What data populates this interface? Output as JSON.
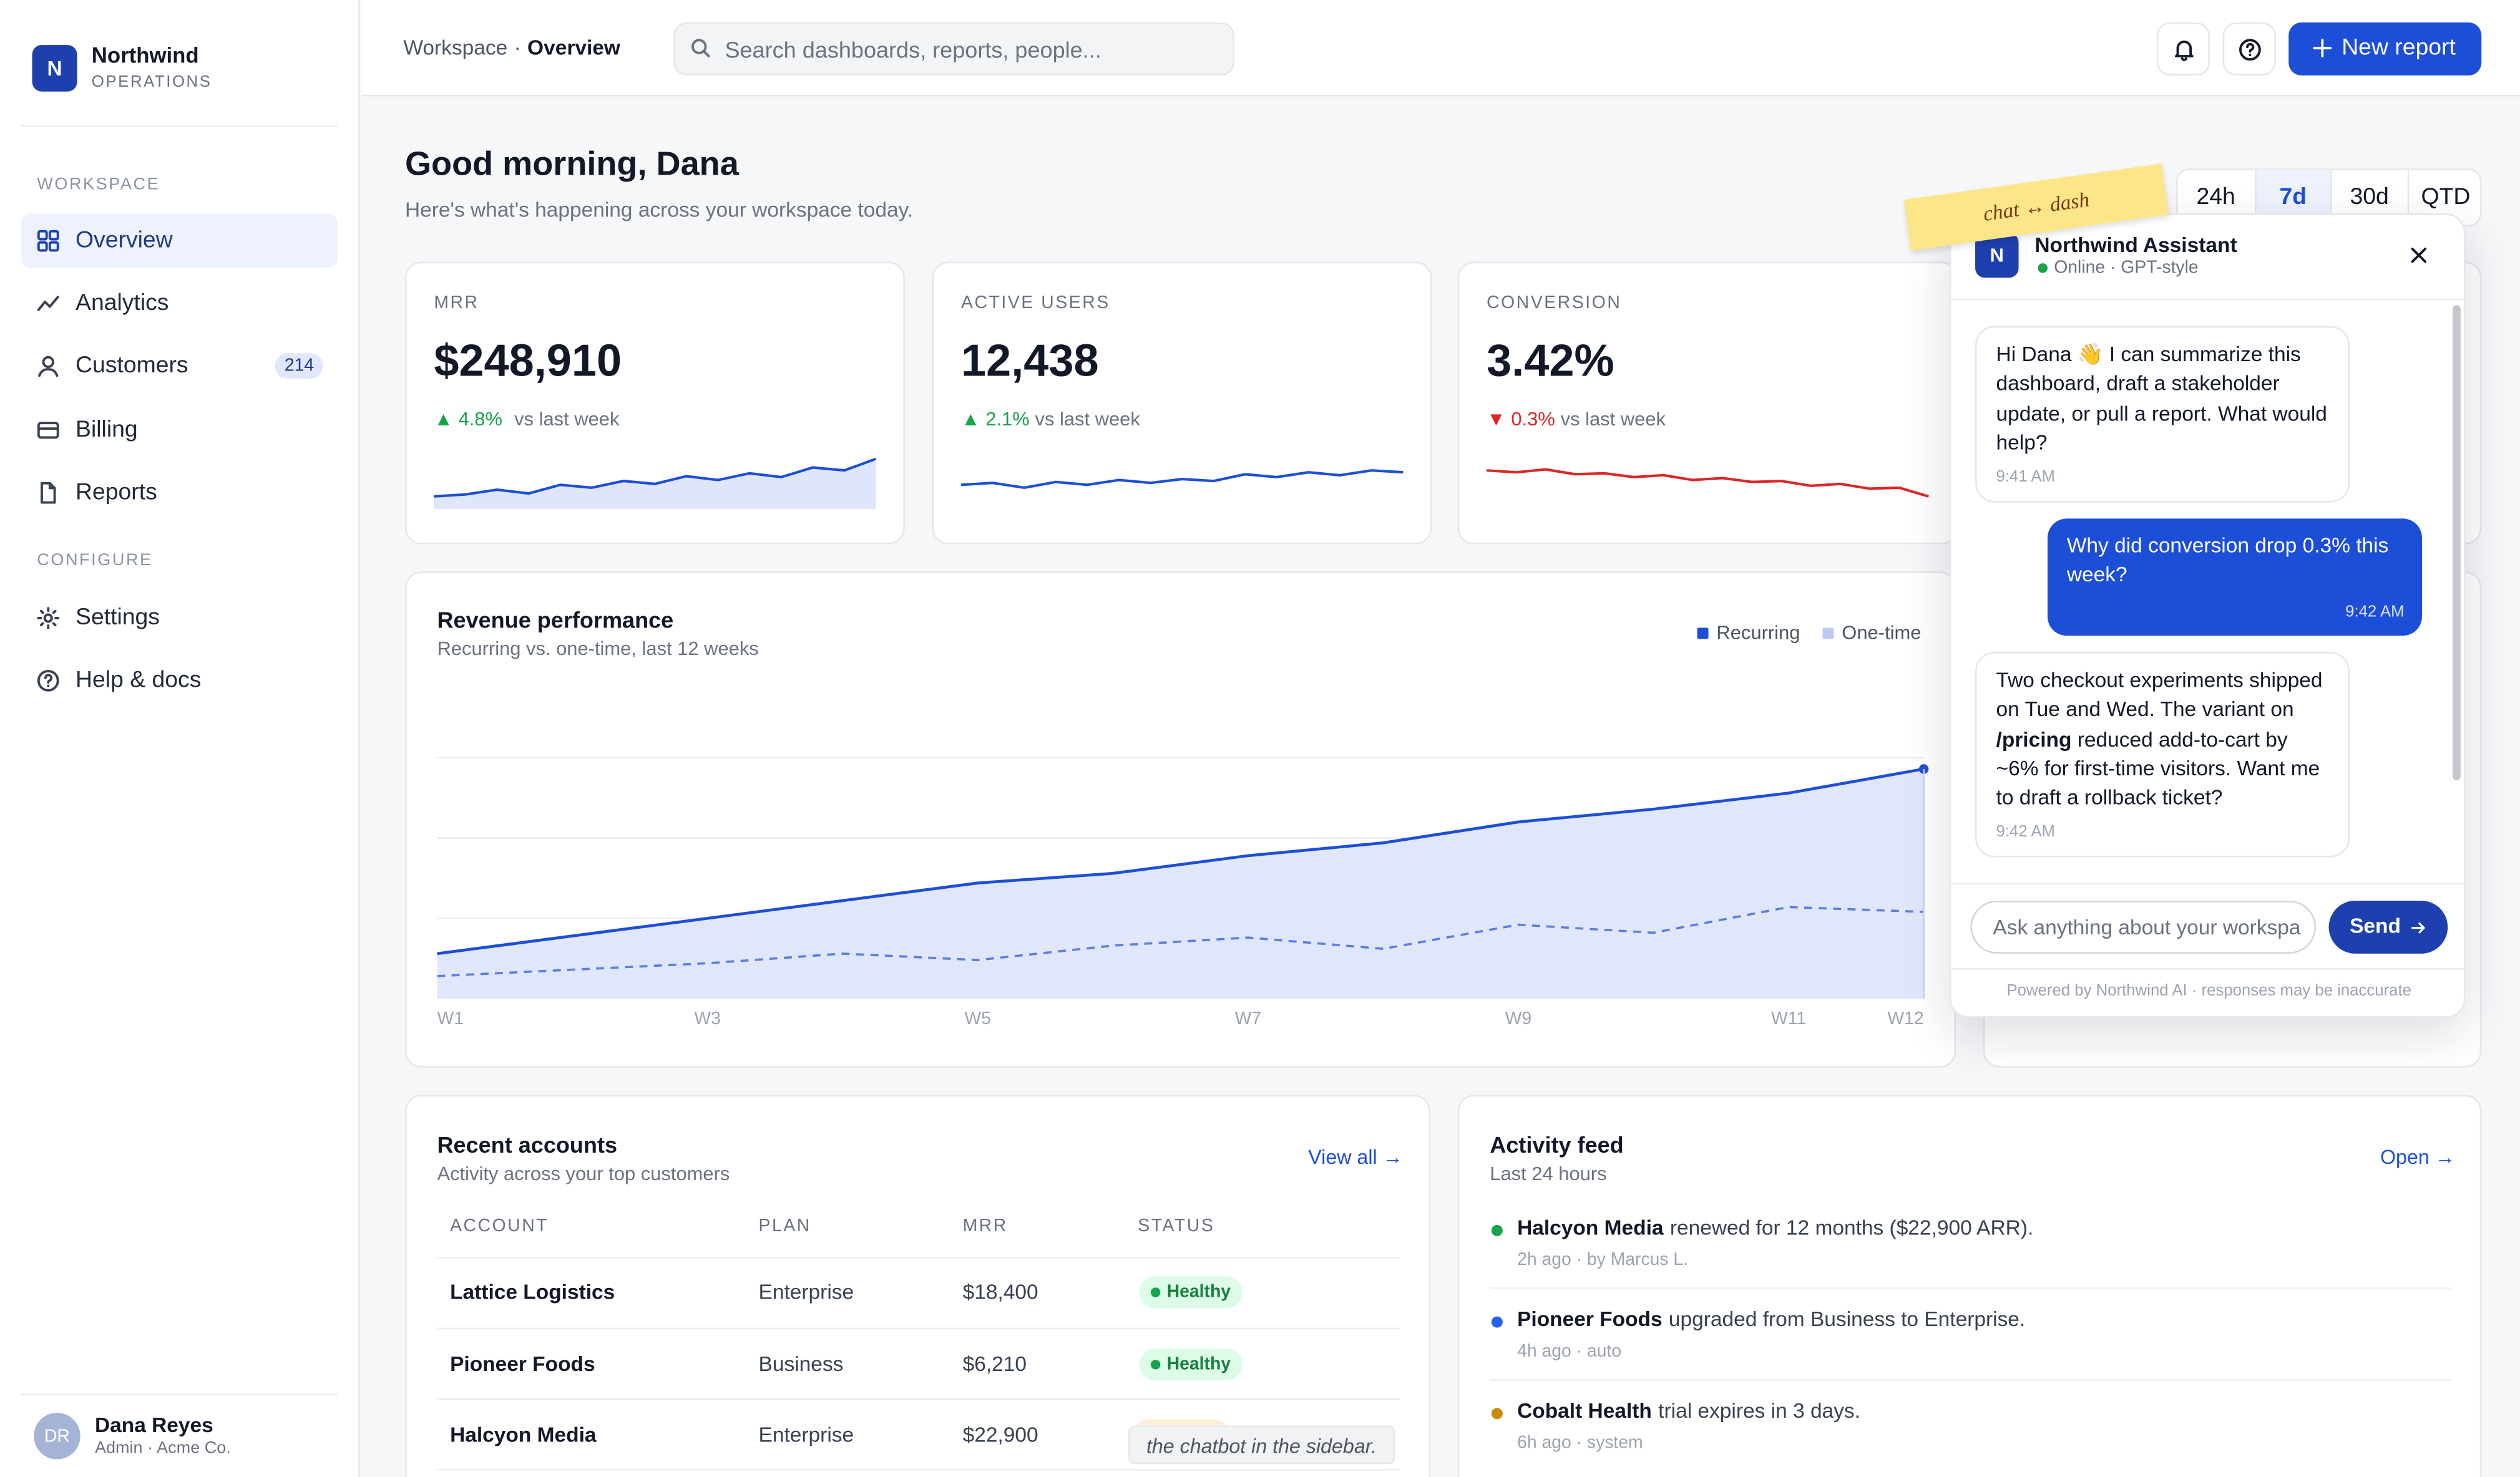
{
  "sidebar": {
    "brand": {
      "initial": "N",
      "name": "Northwind",
      "sub": "OPERATIONS"
    },
    "sections": [
      {
        "label": "WORKSPACE",
        "items": [
          {
            "label": "Overview",
            "active": true
          },
          {
            "label": "Analytics"
          },
          {
            "label": "Customers",
            "badge": 214
          },
          {
            "label": "Billing"
          },
          {
            "label": "Reports"
          }
        ]
      },
      {
        "label": "CONFIGURE",
        "items": [
          {
            "label": "Settings"
          },
          {
            "label": "Help & docs"
          }
        ]
      }
    ],
    "user": {
      "initials": "DR",
      "name": "Dana Reyes",
      "role": "Admin · Acme Co."
    }
  },
  "topbar": {
    "breadcrumb": {
      "parent": "Workspace",
      "separator": "·",
      "current": "Overview"
    },
    "search_placeholder": "Search dashboards, reports, people...",
    "new_report": "New report"
  },
  "greeting": {
    "title": "Good morning, Dana",
    "subtitle": "Here's what's happening across your workspace today."
  },
  "ranges": {
    "options": [
      "24h",
      "7d",
      "30d",
      "QTD"
    ],
    "active": 1
  },
  "kpis": [
    {
      "label": "MRR",
      "value": "$248,910",
      "delta": "▲ 4.8%",
      "direction": "up",
      "compare": "vs last week",
      "color": "#1d4ed8",
      "area": true,
      "spark_ylim": [
        0,
        60
      ],
      "spark": [
        13,
        15,
        20,
        16,
        25,
        22,
        29,
        26,
        34,
        30,
        37,
        33,
        43,
        40,
        52
      ]
    },
    {
      "label": "ACTIVE USERS",
      "value": "12,438",
      "delta": "▲ 2.1%",
      "direction": "up",
      "compare": "vs last week",
      "color": "#1d4ed8",
      "area": false,
      "spark_ylim": [
        0,
        60
      ],
      "spark": [
        25,
        27,
        22,
        28,
        25,
        30,
        27,
        31,
        29,
        36,
        33,
        38,
        35,
        40,
        38
      ]
    },
    {
      "label": "CONVERSION",
      "value": "3.42%",
      "delta": "▼ 0.3%",
      "direction": "down",
      "compare": "vs last week",
      "color": "#dc2626",
      "area": false,
      "spark_ylim": [
        0,
        60
      ],
      "spark": [
        40,
        38,
        41,
        36,
        37,
        33,
        35,
        30,
        32,
        28,
        29,
        24,
        26,
        21,
        22,
        13
      ]
    }
  ],
  "chart_data": {
    "type": "line",
    "title": "Revenue performance",
    "subtitle": "Recurring vs. one-time, last 12 weeks",
    "categories": [
      "W1",
      null,
      "W3",
      null,
      "W5",
      null,
      "W7",
      null,
      "W9",
      null,
      "W11",
      "W12"
    ],
    "series": [
      {
        "name": "Recurring",
        "color": "#1d4ed8",
        "style": "solid",
        "area": true,
        "values": [
          28,
          39,
          50,
          61,
          72,
          78,
          89,
          97,
          110,
          118,
          128,
          143
        ]
      },
      {
        "name": "One-time",
        "color": "#5b7fe0",
        "style": "dashed",
        "area": false,
        "values": [
          14,
          18,
          22,
          28,
          24,
          33,
          38,
          31,
          46,
          41,
          57,
          54
        ]
      }
    ],
    "ylim": [
      0,
      200
    ],
    "yticks": [
      50,
      100,
      150
    ],
    "grid": true
  },
  "assistant": {
    "initial": "N",
    "name": "Northwind Assistant",
    "status": "Online · GPT-style",
    "messages": [
      {
        "role": "assistant",
        "before": "Hi Dana 👋 I can summarize this dashboard, draft a stakeholder update, or pull a report. What would help?",
        "time": "9:41 AM"
      },
      {
        "role": "user",
        "before": "Why did conversion drop 0.3% this week?",
        "time": "9:42 AM"
      },
      {
        "role": "assistant",
        "before": "Two checkout experiments shipped on Tue and Wed. The variant on ",
        "bold": "/pricing",
        "after": " reduced add-to-cart by ~6% for first-time visitors. Want me to draft a rollback ticket?",
        "time": "9:42 AM"
      }
    ],
    "input_placeholder": "Ask anything about your workspa",
    "send": "Send",
    "footer": "Powered by Northwind AI · responses may be inaccurate"
  },
  "sticky_note": "chat ↔ dash",
  "accounts": {
    "title": "Recent accounts",
    "subtitle": "Activity across your top customers",
    "link": "View all →",
    "columns": [
      "ACCOUNT",
      "PLAN",
      "MRR",
      "STATUS"
    ],
    "rows": [
      [
        "Lattice Logistics",
        "Enterprise",
        "$18,400",
        "Healthy"
      ],
      [
        "Pioneer Foods",
        "Business",
        "$6,210",
        "Healthy"
      ],
      [
        "Halcyon Media",
        "Enterprise",
        "$22,900",
        null
      ]
    ]
  },
  "tooltip": "the chatbot in the sidebar.",
  "activity": {
    "title": "Activity feed",
    "subtitle": "Last 24 hours",
    "link": "Open →",
    "items": [
      {
        "subject": "Halcyon Media",
        "text": "renewed for 12 months ($22,900 ARR).",
        "meta": "2h ago · by Marcus L.",
        "color": "#16a34a"
      },
      {
        "subject": "Pioneer Foods",
        "text": "upgraded from Business to Enterprise.",
        "meta": "4h ago · auto",
        "color": "#2563eb"
      },
      {
        "subject": "Cobalt Health",
        "text": "trial expires in 3 days.",
        "meta": "6h ago · system",
        "color": "#ca8a04"
      }
    ]
  }
}
